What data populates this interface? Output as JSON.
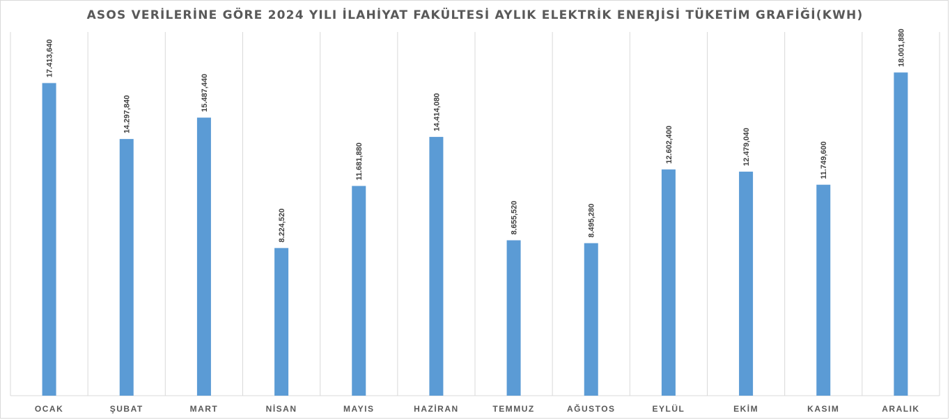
{
  "chart_data": {
    "type": "bar",
    "title": "ASOS VERİLERİNE GÖRE 2024 YILI İLAHİYAT FAKÜLTESİ AYLIK ELEKTRİK ENERJİSİ TÜKETİM GRAFİĞİ(KWH)",
    "categories": [
      "OCAK",
      "ŞUBAT",
      "MART",
      "NİSAN",
      "MAYIS",
      "HAZİRAN",
      "TEMMUZ",
      "AĞUSTOS",
      "EYLÜL",
      "EKİM",
      "KASIM",
      "ARALIK"
    ],
    "values": [
      17413640,
      14297840,
      15487440,
      8224520,
      11681880,
      14414080,
      8655520,
      8495280,
      12602400,
      12479040,
      11749600,
      18001880
    ],
    "value_labels": [
      "17.413,640",
      "14.297,840",
      "15.487,440",
      "8.224,520",
      "11.681,880",
      "14.414,080",
      "8.655,520",
      "8.495,280",
      "12.602,400",
      "12.479,040",
      "11.749,600",
      "18.001,880"
    ],
    "xlabel": "",
    "ylabel": "",
    "ylim": [
      0,
      18001880
    ],
    "grid": "vertical",
    "bar_color": "#5b9bd5",
    "legend": "none"
  }
}
